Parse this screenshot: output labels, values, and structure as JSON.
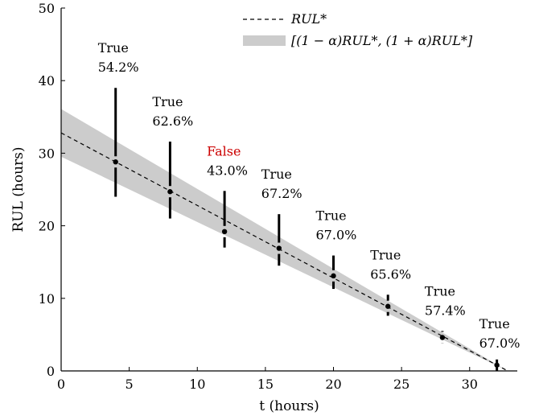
{
  "chart_data": {
    "type": "scatter",
    "title": "",
    "xlabel": "t (hours)",
    "ylabel": "RUL (hours)",
    "xlim": [
      0,
      33.5
    ],
    "ylim": [
      0,
      50
    ],
    "xticks": [
      0,
      5,
      10,
      15,
      20,
      25,
      30
    ],
    "yticks": [
      0,
      10,
      20,
      30,
      40,
      50
    ],
    "grid": false,
    "legend": {
      "placement": "top-right",
      "entries": [
        {
          "label": "RUL*",
          "style": "dashed-line"
        },
        {
          "label": "[(1 − α)RUL*, (1 + α)RUL*]",
          "style": "band"
        }
      ]
    },
    "reference_line": {
      "name": "RUL*",
      "points": [
        [
          0,
          32.8
        ],
        [
          32.8,
          0
        ]
      ]
    },
    "alpha_band": {
      "alpha": 0.1
    },
    "points": [
      {
        "t": 4,
        "rul": 28.8,
        "low": 24.0,
        "high": 39.0,
        "label": "True",
        "pct": "54.2%"
      },
      {
        "t": 8,
        "rul": 24.7,
        "low": 21.0,
        "high": 31.6,
        "label": "True",
        "pct": "62.6%"
      },
      {
        "t": 12,
        "rul": 19.2,
        "low": 17.0,
        "high": 24.8,
        "label": "False",
        "pct": "43.0%"
      },
      {
        "t": 16,
        "rul": 16.9,
        "low": 14.5,
        "high": 21.6,
        "label": "True",
        "pct": "67.2%"
      },
      {
        "t": 20,
        "rul": 13.1,
        "low": 11.3,
        "high": 15.9,
        "label": "True",
        "pct": "67.0%"
      },
      {
        "t": 24,
        "rul": 8.9,
        "low": 7.6,
        "high": 10.5,
        "label": "True",
        "pct": "65.6%"
      },
      {
        "t": 28,
        "rul": 4.6,
        "low": 3.8,
        "high": 5.5,
        "label": "True",
        "pct": "57.4%"
      },
      {
        "t": 32,
        "rul": 0.8,
        "low": 0.5,
        "high": 1.0,
        "label": "True",
        "pct": "67.0%"
      }
    ],
    "colors": {
      "band": "#cccccc",
      "line": "#000000",
      "true_label": "#000000",
      "false_label": "#cc0000"
    }
  }
}
